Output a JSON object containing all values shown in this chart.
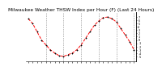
{
  "title": "Milwaukee Weather THSW Index per Hour (F) (Last 24 Hours)",
  "y_values": [
    6.5,
    5.0,
    2.5,
    0.0,
    -1.5,
    -3.0,
    -4.0,
    -4.8,
    -5.0,
    -4.5,
    -4.0,
    -3.0,
    -1.5,
    0.5,
    2.5,
    4.5,
    5.8,
    6.8,
    7.0,
    6.5,
    5.5,
    3.5,
    1.5,
    -0.5,
    -3.0
  ],
  "line_color": "#ff0000",
  "marker_color": "#000000",
  "bg_color": "#ffffff",
  "grid_color": "#888888",
  "ylim": [
    -6.5,
    8.5
  ],
  "yticks": [
    -5,
    -4,
    -3,
    -2,
    -1,
    0,
    1,
    2,
    3,
    4,
    5,
    6,
    7
  ],
  "ytick_labels": [
    "-5",
    "-4",
    "-3",
    "-2",
    "-1",
    "0",
    "1",
    "2",
    "3",
    "4",
    "5",
    "6",
    "7"
  ],
  "num_points": 25,
  "vgrid_positions": [
    4,
    8,
    12,
    16,
    20,
    24
  ],
  "title_fontsize": 4.2
}
